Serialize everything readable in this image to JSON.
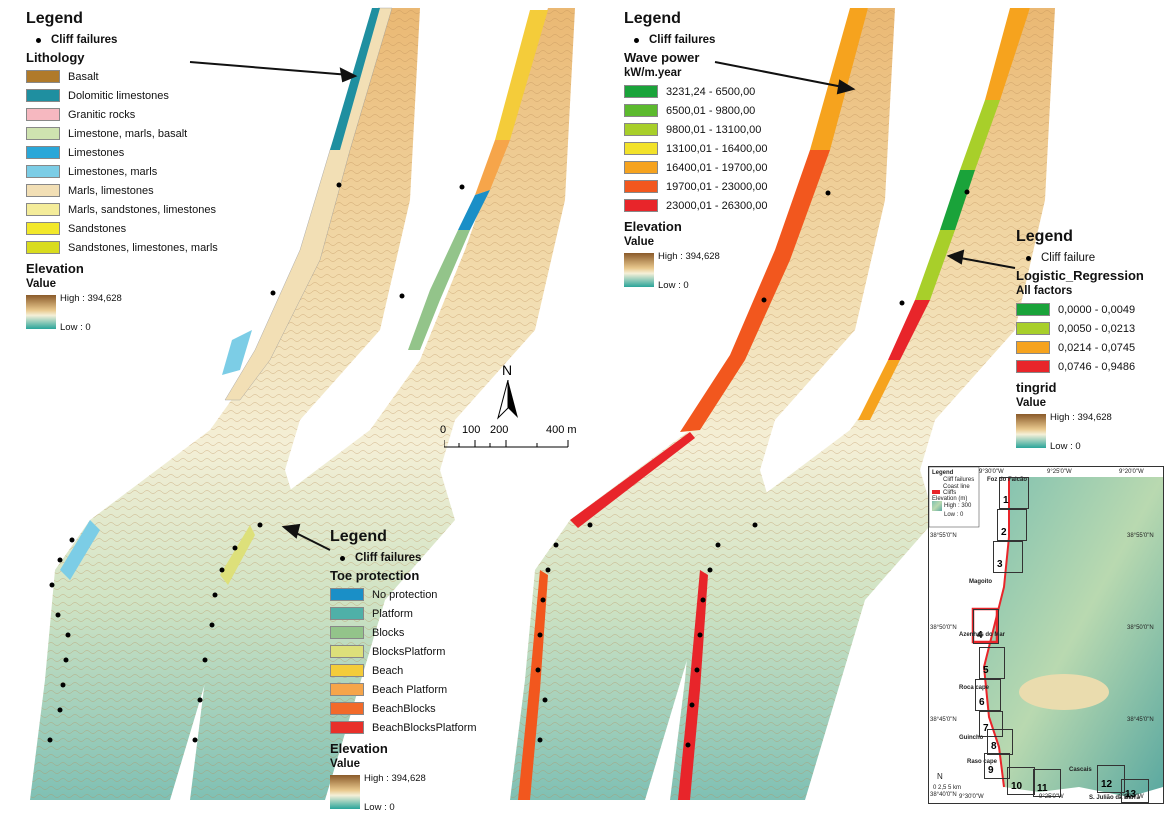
{
  "legend_lithology": {
    "title": "Legend",
    "cliff": "Cliff failures",
    "heading": "Lithology",
    "items": [
      {
        "label": "Basalt",
        "color": "#b07a2a"
      },
      {
        "label": "Dolomitic limestones",
        "color": "#1f8fa0"
      },
      {
        "label": "Granitic rocks",
        "color": "#f6b8c0"
      },
      {
        "label": "Limestone, marls, basalt",
        "color": "#cfe3b0"
      },
      {
        "label": "Limestones",
        "color": "#2aa7d8"
      },
      {
        "label": "Limestones, marls",
        "color": "#7ccde6"
      },
      {
        "label": "Marls, limestones",
        "color": "#f2dfb5"
      },
      {
        "label": "Marls, sandstones, limestones",
        "color": "#f4ec9a"
      },
      {
        "label": "Sandstones",
        "color": "#f2e82a"
      },
      {
        "label": "Sandstones, limestones, marls",
        "color": "#d9dc1e"
      }
    ],
    "elev_heading": "Elevation",
    "value_label": "Value",
    "high": "High : 394,628",
    "low": "Low : 0"
  },
  "legend_toe": {
    "title": "Legend",
    "cliff": "Cliff failures",
    "heading": "Toe protection",
    "items": [
      {
        "label": "No protection",
        "color": "#1a8fc7"
      },
      {
        "label": "Platform",
        "color": "#4fb0a8"
      },
      {
        "label": "Blocks",
        "color": "#93c48a"
      },
      {
        "label": "BlocksPlatform",
        "color": "#dde07a"
      },
      {
        "label": "Beach",
        "color": "#f4cc3a"
      },
      {
        "label": "Beach Platform",
        "color": "#f6a54a"
      },
      {
        "label": "BeachBlocks",
        "color": "#f26a2a"
      },
      {
        "label": "BeachBlocksPlatform",
        "color": "#e8302a"
      }
    ],
    "elev_heading": "Elevation",
    "value_label": "Value",
    "high": "High : 394,628",
    "low": "Low : 0"
  },
  "legend_wave": {
    "title": "Legend",
    "cliff": "Cliff failures",
    "heading": "Wave power",
    "unit": "kW/m.year",
    "items": [
      {
        "label": "3231,24 - 6500,00",
        "color": "#1aa33a"
      },
      {
        "label": "6500,01 - 9800,00",
        "color": "#5cba2e"
      },
      {
        "label": "9800,01 - 13100,00",
        "color": "#a8cf2a"
      },
      {
        "label": "13100,01 - 16400,00",
        "color": "#f2e22a"
      },
      {
        "label": "16400,01 - 19700,00",
        "color": "#f6a31e"
      },
      {
        "label": "19700,01 - 23000,00",
        "color": "#f2571e"
      },
      {
        "label": "23000,01 - 26300,00",
        "color": "#e8252a"
      }
    ],
    "elev_heading": "Elevation",
    "value_label": "Value",
    "high": "High : 394,628",
    "low": "Low : 0"
  },
  "legend_logit": {
    "title": "Legend",
    "cliff": "Cliff failure",
    "heading": "Logistic_Regression",
    "sub": "All factors",
    "items": [
      {
        "label": "0,0000 - 0,0049",
        "color": "#1aa33a"
      },
      {
        "label": "0,0050 - 0,0213",
        "color": "#a8cf2a"
      },
      {
        "label": "0,0214 - 0,0745",
        "color": "#f6a31e"
      },
      {
        "label": "0,0746 - 0,9486",
        "color": "#e8252a"
      }
    ],
    "elev_heading": "tingrid",
    "value_label": "Value",
    "high": "High : 394,628",
    "low": "Low : 0"
  },
  "north": "N",
  "scale": {
    "ticks": [
      "0",
      "100",
      "200",
      "400 m"
    ]
  },
  "inset": {
    "lon_top": [
      "9°30'0\"W",
      "9°25'0\"W",
      "9°20'0\"W"
    ],
    "lon_bottom": [
      "9°30'0\"W",
      "9°25'0\"W",
      "9°20'0\"W"
    ],
    "lat_left": [
      "38°55'0\"N",
      "38°50'0\"N",
      "38°45'0\"N",
      "38°40'0\"N"
    ],
    "lat_right": [
      "38°55'0\"N",
      "38°50'0\"N",
      "38°45'0\"N"
    ],
    "legend_title": "Legend",
    "legend_items": [
      "Cliff failures",
      "Coast line",
      "Cliffs"
    ],
    "legend_elev": "Elevation (m)",
    "legend_high": "High : 300",
    "legend_low": "Low : 0",
    "places": [
      "Foz do Falcão",
      "Magoito",
      "Azenhas do Mar",
      "Roca cape",
      "Guincho",
      "Raso cape",
      "Cascais",
      "S. Julião da Barra"
    ],
    "boxes": [
      "1",
      "2",
      "3",
      "4",
      "5",
      "6",
      "7",
      "8",
      "9",
      "10",
      "11",
      "12",
      "13"
    ],
    "scale": "0 2,5 5 km",
    "north": "N"
  }
}
